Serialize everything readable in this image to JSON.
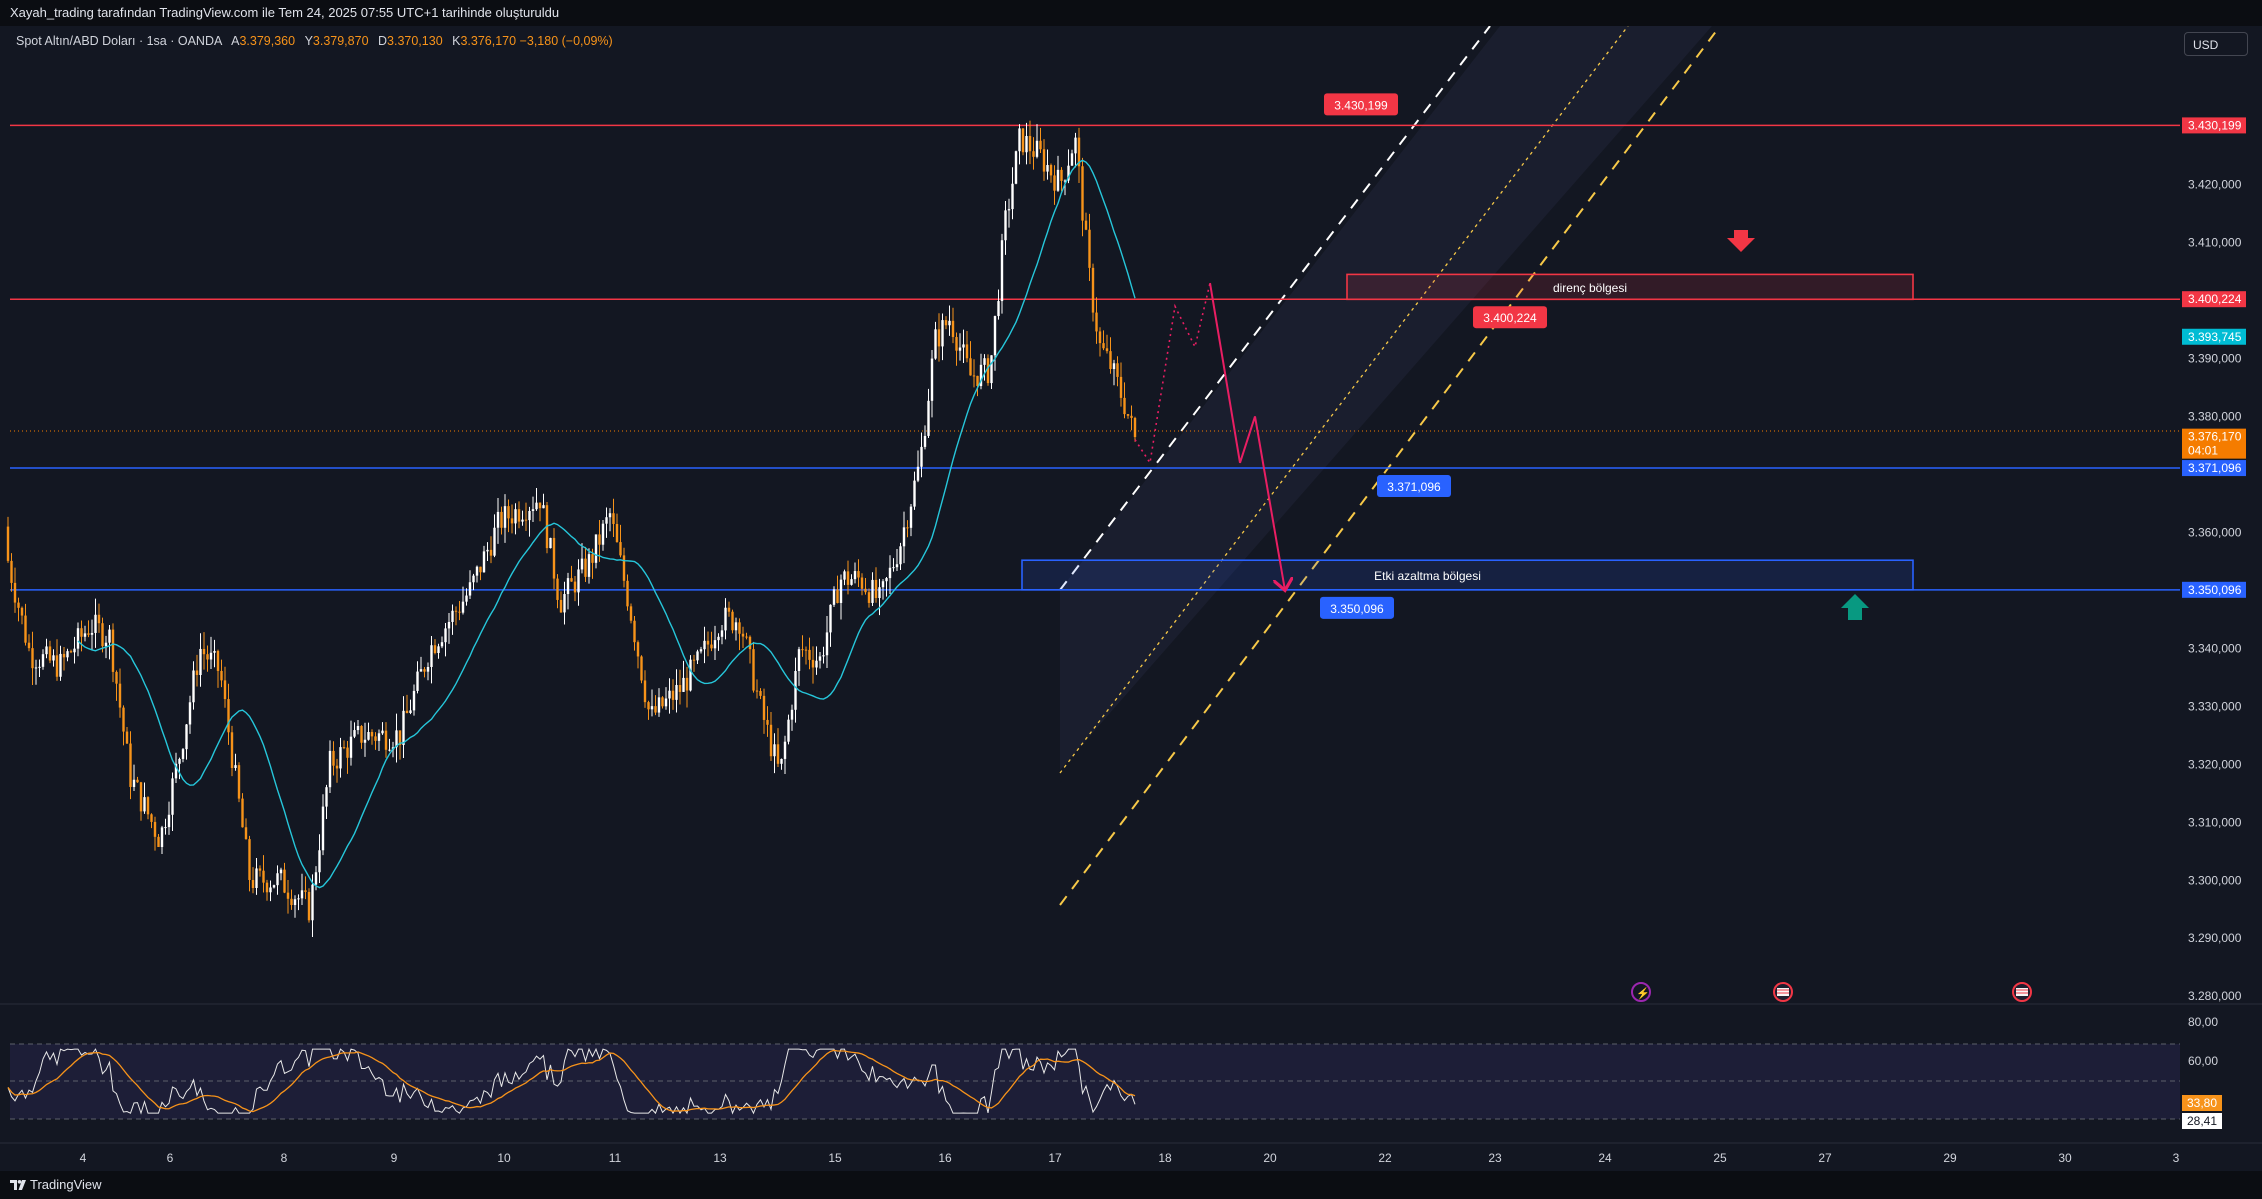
{
  "header": {
    "caption": "Xayah_trading tarafından TradingView.com ile Tem 24, 2025 07:55 UTC+1 tarihinde oluşturuldu"
  },
  "legend": {
    "symbol": "Spot Altın/ABD Doları · 1sa · OANDA",
    "o_label": "A",
    "o": "3.379,360",
    "h_label": "Y",
    "h": "3.379,870",
    "l_label": "D",
    "l": "3.370,130",
    "c_label": "K",
    "c": "3.376,170",
    "change": "−3,180 (−0,09%)"
  },
  "currency": "USD",
  "footer": {
    "brand": "TradingView"
  },
  "colors": {
    "background": "#131722",
    "up": "#ffffff",
    "down": "#f7931a",
    "resistance": "#f23645",
    "support": "#2962ff",
    "ma": "#26c6da",
    "rsi": "#e8e8e8",
    "rsi_ma": "#f7931a",
    "projection": "#e91e63"
  },
  "chart_data": {
    "type": "candlestick",
    "title": "Spot Altın/ABD Doları · 1sa · OANDA",
    "y_ticks": [
      "3.420,000",
      "3.410,000",
      "3.390,000",
      "3.380,000",
      "3.360,000",
      "3.340,000",
      "3.330,000",
      "3.320,000",
      "3.310,000",
      "3.300,000",
      "3.290,000",
      "3.280,000"
    ],
    "ylim": [
      3279,
      3447
    ],
    "x_ticks": [
      "4",
      "6",
      "8",
      "9",
      "10",
      "11",
      "13",
      "15",
      "16",
      "17",
      "18",
      "20",
      "22",
      "23",
      "24",
      "25",
      "27",
      "29",
      "30",
      "3"
    ],
    "price_path": [
      [
        0,
        3361
      ],
      [
        30,
        3339
      ],
      [
        60,
        3337
      ],
      [
        90,
        3344
      ],
      [
        110,
        3342
      ],
      [
        130,
        3318
      ],
      [
        160,
        3307
      ],
      [
        180,
        3322
      ],
      [
        200,
        3340
      ],
      [
        220,
        3336
      ],
      [
        250,
        3300
      ],
      [
        280,
        3300
      ],
      [
        310,
        3295
      ],
      [
        330,
        3320
      ],
      [
        360,
        3325
      ],
      [
        400,
        3325
      ],
      [
        430,
        3340
      ],
      [
        470,
        3350
      ],
      [
        500,
        3362
      ],
      [
        520,
        3364
      ],
      [
        540,
        3366
      ],
      [
        560,
        3348
      ],
      [
        590,
        3355
      ],
      [
        610,
        3363
      ],
      [
        630,
        3347
      ],
      [
        650,
        3328
      ],
      [
        680,
        3333
      ],
      [
        700,
        3338
      ],
      [
        720,
        3345
      ],
      [
        740,
        3345
      ],
      [
        760,
        3330
      ],
      [
        780,
        3318
      ],
      [
        800,
        3340
      ],
      [
        820,
        3338
      ],
      [
        840,
        3352
      ],
      [
        860,
        3352
      ],
      [
        880,
        3348
      ],
      [
        900,
        3358
      ],
      [
        920,
        3372
      ],
      [
        935,
        3393
      ],
      [
        950,
        3397
      ],
      [
        970,
        3387
      ],
      [
        990,
        3388
      ],
      [
        1005,
        3413
      ],
      [
        1020,
        3428
      ],
      [
        1040,
        3425
      ],
      [
        1060,
        3420
      ],
      [
        1075,
        3428
      ],
      [
        1080,
        3420
      ],
      [
        1090,
        3403
      ],
      [
        1100,
        3392
      ],
      [
        1110,
        3389
      ],
      [
        1125,
        3382
      ],
      [
        1135,
        3376
      ]
    ],
    "horizontal_levels": [
      {
        "label": "3.430,199",
        "value": 3430.199,
        "color": "#f23645"
      },
      {
        "label": "3.400,224",
        "value": 3400.224,
        "color": "#f23645"
      },
      {
        "label": "3.371,096",
        "value": 3371.096,
        "color": "#2962ff"
      },
      {
        "label": "3.350,096",
        "value": 3350.096,
        "color": "#2962ff"
      }
    ],
    "price_tags": [
      {
        "label": "3.430,199",
        "value": 3430.199,
        "color": "#f23645"
      },
      {
        "label": "3.400,224",
        "value": 3400.224,
        "color": "#f23645"
      },
      {
        "label": "3.393,745",
        "value": 3393.745,
        "color": "#00bcd4"
      },
      {
        "label": "3.376,170",
        "sub": "04:01",
        "value": 3376.17,
        "color": "#f57c00"
      },
      {
        "label": "3.371,096",
        "value": 3371.096,
        "color": "#2962ff"
      },
      {
        "label": "3.350,096",
        "value": 3350.096,
        "color": "#2962ff"
      }
    ],
    "chart_callouts": [
      {
        "label": "3.430,199",
        "value": 3430.199,
        "color": "#f23645"
      },
      {
        "label": "3.400,224",
        "value": 3400.224,
        "color": "#f23645"
      },
      {
        "label": "3.371,096",
        "value": 3371.096,
        "color": "#2962ff"
      },
      {
        "label": "3.350,096",
        "value": 3350.096,
        "color": "#2962ff"
      }
    ],
    "zones": [
      {
        "label": "direnç bölgesi",
        "top": 3404.5,
        "bottom": 3400.2,
        "color": "#f23645"
      },
      {
        "label": "Etki azaltma bölgesi",
        "top": 3355.2,
        "bottom": 3350.1,
        "color": "#2962ff"
      }
    ],
    "projection": [
      [
        1135,
        3376
      ],
      [
        1150,
        3372
      ],
      [
        1175,
        3399
      ],
      [
        1195,
        3392
      ],
      [
        1210,
        3403
      ],
      [
        1240,
        3372
      ],
      [
        1255,
        3380
      ],
      [
        1285,
        3350
      ]
    ],
    "rsi": {
      "levels": [
        "80,00",
        "60,00"
      ],
      "rsi_value": "28,41",
      "rsi_ma_value": "33,80",
      "ylim": [
        20,
        90
      ]
    }
  }
}
